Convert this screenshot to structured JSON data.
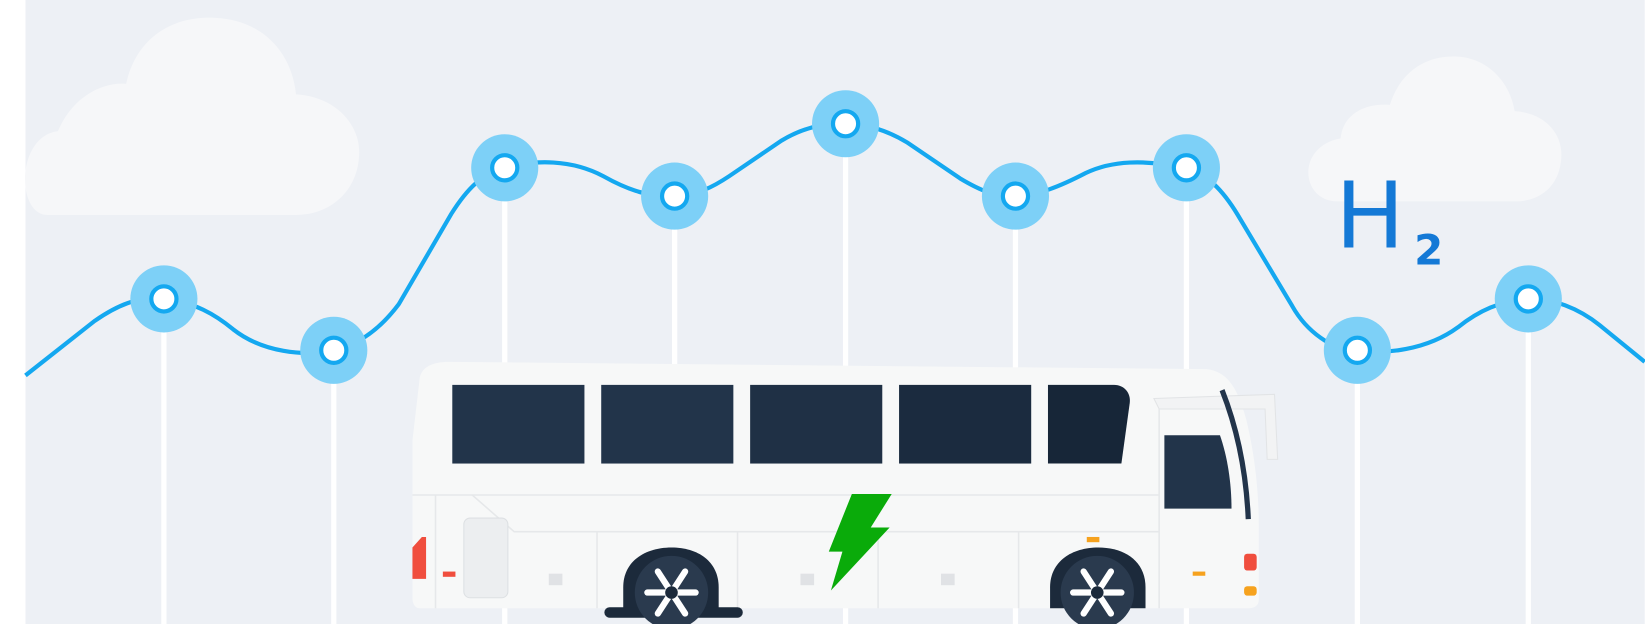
{
  "logo": {
    "symbol": "H",
    "subscript": "2"
  }
}
